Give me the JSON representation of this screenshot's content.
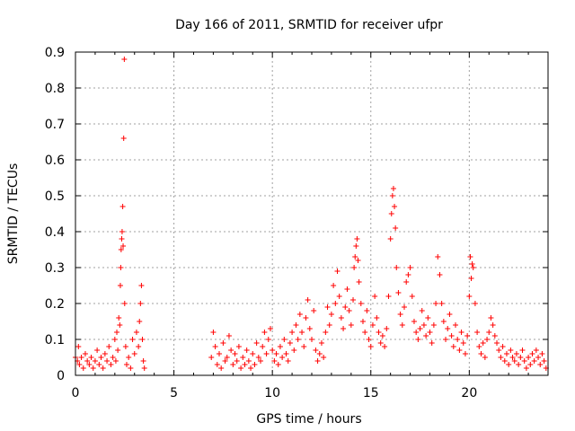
{
  "chart_data": {
    "type": "scatter",
    "title": "Day 166 of 2011, SRMTID for receiver ufpr",
    "xlabel": "GPS time / hours",
    "ylabel": "SRMTID / TECUs",
    "xlim": [
      0,
      24
    ],
    "ylim": [
      0,
      0.9
    ],
    "xticks": [
      "0",
      "5",
      "10",
      "15",
      "20"
    ],
    "xtick_values": [
      0,
      5,
      10,
      15,
      20
    ],
    "yticks": [
      "0",
      "0.1",
      "0.2",
      "0.3",
      "0.4",
      "0.5",
      "0.6",
      "0.7",
      "0.8",
      "0.9"
    ],
    "ytick_values": [
      0,
      0.1,
      0.2,
      0.3,
      0.4,
      0.5,
      0.6,
      0.7,
      0.8,
      0.9
    ],
    "grid": true,
    "marker": "+",
    "series": [
      {
        "name": "SRMTID",
        "color": "#ff0000",
        "points": [
          [
            0.0,
            0.05
          ],
          [
            0.1,
            0.04
          ],
          [
            0.15,
            0.08
          ],
          [
            0.2,
            0.03
          ],
          [
            0.3,
            0.05
          ],
          [
            0.4,
            0.02
          ],
          [
            0.5,
            0.06
          ],
          [
            0.6,
            0.04
          ],
          [
            0.7,
            0.03
          ],
          [
            0.8,
            0.05
          ],
          [
            0.9,
            0.02
          ],
          [
            1.0,
            0.04
          ],
          [
            1.1,
            0.07
          ],
          [
            1.2,
            0.03
          ],
          [
            1.3,
            0.05
          ],
          [
            1.4,
            0.02
          ],
          [
            1.5,
            0.06
          ],
          [
            1.6,
            0.04
          ],
          [
            1.7,
            0.08
          ],
          [
            1.8,
            0.03
          ],
          [
            1.9,
            0.05
          ],
          [
            2.0,
            0.1
          ],
          [
            2.05,
            0.04
          ],
          [
            2.1,
            0.12
          ],
          [
            2.15,
            0.07
          ],
          [
            2.2,
            0.16
          ],
          [
            2.25,
            0.14
          ],
          [
            2.28,
            0.25
          ],
          [
            2.3,
            0.3
          ],
          [
            2.32,
            0.35
          ],
          [
            2.35,
            0.38
          ],
          [
            2.37,
            0.4
          ],
          [
            2.4,
            0.47
          ],
          [
            2.42,
            0.36
          ],
          [
            2.45,
            0.66
          ],
          [
            2.48,
            0.88
          ],
          [
            2.5,
            0.2
          ],
          [
            2.55,
            0.08
          ],
          [
            2.6,
            0.03
          ],
          [
            2.7,
            0.05
          ],
          [
            2.8,
            0.02
          ],
          [
            2.9,
            0.1
          ],
          [
            3.0,
            0.06
          ],
          [
            3.1,
            0.12
          ],
          [
            3.2,
            0.08
          ],
          [
            3.25,
            0.15
          ],
          [
            3.3,
            0.2
          ],
          [
            3.35,
            0.25
          ],
          [
            3.4,
            0.1
          ],
          [
            3.45,
            0.04
          ],
          [
            3.5,
            0.02
          ],
          [
            6.9,
            0.05
          ],
          [
            7.0,
            0.12
          ],
          [
            7.1,
            0.08
          ],
          [
            7.2,
            0.03
          ],
          [
            7.3,
            0.06
          ],
          [
            7.4,
            0.02
          ],
          [
            7.5,
            0.09
          ],
          [
            7.6,
            0.04
          ],
          [
            7.7,
            0.05
          ],
          [
            7.8,
            0.11
          ],
          [
            7.9,
            0.07
          ],
          [
            8.0,
            0.03
          ],
          [
            8.1,
            0.06
          ],
          [
            8.2,
            0.04
          ],
          [
            8.3,
            0.08
          ],
          [
            8.4,
            0.02
          ],
          [
            8.5,
            0.05
          ],
          [
            8.6,
            0.03
          ],
          [
            8.7,
            0.07
          ],
          [
            8.8,
            0.04
          ],
          [
            8.9,
            0.02
          ],
          [
            9.0,
            0.06
          ],
          [
            9.1,
            0.03
          ],
          [
            9.2,
            0.09
          ],
          [
            9.3,
            0.05
          ],
          [
            9.4,
            0.04
          ],
          [
            9.5,
            0.08
          ],
          [
            9.6,
            0.12
          ],
          [
            9.7,
            0.06
          ],
          [
            9.8,
            0.1
          ],
          [
            9.9,
            0.13
          ],
          [
            10.0,
            0.07
          ],
          [
            10.1,
            0.04
          ],
          [
            10.2,
            0.06
          ],
          [
            10.3,
            0.03
          ],
          [
            10.4,
            0.08
          ],
          [
            10.5,
            0.05
          ],
          [
            10.6,
            0.1
          ],
          [
            10.7,
            0.06
          ],
          [
            10.8,
            0.04
          ],
          [
            10.9,
            0.09
          ],
          [
            11.0,
            0.12
          ],
          [
            11.1,
            0.07
          ],
          [
            11.2,
            0.14
          ],
          [
            11.3,
            0.1
          ],
          [
            11.4,
            0.17
          ],
          [
            11.5,
            0.12
          ],
          [
            11.6,
            0.08
          ],
          [
            11.7,
            0.16
          ],
          [
            11.8,
            0.21
          ],
          [
            11.9,
            0.13
          ],
          [
            12.0,
            0.1
          ],
          [
            12.1,
            0.18
          ],
          [
            12.2,
            0.07
          ],
          [
            12.3,
            0.04
          ],
          [
            12.4,
            0.06
          ],
          [
            12.5,
            0.09
          ],
          [
            12.6,
            0.05
          ],
          [
            12.7,
            0.12
          ],
          [
            12.8,
            0.19
          ],
          [
            12.9,
            0.14
          ],
          [
            13.0,
            0.17
          ],
          [
            13.1,
            0.25
          ],
          [
            13.2,
            0.2
          ],
          [
            13.3,
            0.29
          ],
          [
            13.4,
            0.22
          ],
          [
            13.5,
            0.16
          ],
          [
            13.6,
            0.13
          ],
          [
            13.7,
            0.19
          ],
          [
            13.8,
            0.24
          ],
          [
            13.9,
            0.18
          ],
          [
            14.0,
            0.14
          ],
          [
            14.1,
            0.21
          ],
          [
            14.15,
            0.3
          ],
          [
            14.2,
            0.33
          ],
          [
            14.25,
            0.36
          ],
          [
            14.3,
            0.38
          ],
          [
            14.35,
            0.32
          ],
          [
            14.4,
            0.26
          ],
          [
            14.5,
            0.2
          ],
          [
            14.6,
            0.15
          ],
          [
            14.7,
            0.12
          ],
          [
            14.8,
            0.18
          ],
          [
            14.9,
            0.1
          ],
          [
            15.0,
            0.08
          ],
          [
            15.1,
            0.14
          ],
          [
            15.2,
            0.22
          ],
          [
            15.3,
            0.16
          ],
          [
            15.4,
            0.12
          ],
          [
            15.5,
            0.09
          ],
          [
            15.6,
            0.11
          ],
          [
            15.7,
            0.08
          ],
          [
            15.8,
            0.13
          ],
          [
            15.9,
            0.22
          ],
          [
            16.0,
            0.38
          ],
          [
            16.05,
            0.45
          ],
          [
            16.1,
            0.5
          ],
          [
            16.15,
            0.52
          ],
          [
            16.2,
            0.47
          ],
          [
            16.25,
            0.41
          ],
          [
            16.3,
            0.3
          ],
          [
            16.4,
            0.23
          ],
          [
            16.5,
            0.17
          ],
          [
            16.6,
            0.14
          ],
          [
            16.7,
            0.19
          ],
          [
            16.8,
            0.26
          ],
          [
            16.9,
            0.28
          ],
          [
            17.0,
            0.3
          ],
          [
            17.1,
            0.22
          ],
          [
            17.2,
            0.15
          ],
          [
            17.3,
            0.12
          ],
          [
            17.4,
            0.1
          ],
          [
            17.5,
            0.13
          ],
          [
            17.6,
            0.18
          ],
          [
            17.7,
            0.14
          ],
          [
            17.8,
            0.11
          ],
          [
            17.9,
            0.16
          ],
          [
            18.0,
            0.12
          ],
          [
            18.1,
            0.09
          ],
          [
            18.2,
            0.14
          ],
          [
            18.3,
            0.2
          ],
          [
            18.4,
            0.33
          ],
          [
            18.5,
            0.28
          ],
          [
            18.6,
            0.2
          ],
          [
            18.7,
            0.15
          ],
          [
            18.8,
            0.1
          ],
          [
            18.9,
            0.13
          ],
          [
            19.0,
            0.17
          ],
          [
            19.1,
            0.11
          ],
          [
            19.2,
            0.08
          ],
          [
            19.3,
            0.14
          ],
          [
            19.4,
            0.1
          ],
          [
            19.5,
            0.07
          ],
          [
            19.6,
            0.12
          ],
          [
            19.7,
            0.09
          ],
          [
            19.8,
            0.06
          ],
          [
            19.9,
            0.11
          ],
          [
            20.0,
            0.22
          ],
          [
            20.05,
            0.33
          ],
          [
            20.1,
            0.27
          ],
          [
            20.15,
            0.31
          ],
          [
            20.2,
            0.3
          ],
          [
            20.3,
            0.2
          ],
          [
            20.4,
            0.12
          ],
          [
            20.5,
            0.08
          ],
          [
            20.6,
            0.06
          ],
          [
            20.7,
            0.09
          ],
          [
            20.8,
            0.05
          ],
          [
            20.9,
            0.1
          ],
          [
            21.0,
            0.12
          ],
          [
            21.1,
            0.16
          ],
          [
            21.2,
            0.14
          ],
          [
            21.3,
            0.11
          ],
          [
            21.4,
            0.09
          ],
          [
            21.5,
            0.07
          ],
          [
            21.6,
            0.05
          ],
          [
            21.7,
            0.08
          ],
          [
            21.8,
            0.04
          ],
          [
            21.9,
            0.06
          ],
          [
            22.0,
            0.03
          ],
          [
            22.1,
            0.07
          ],
          [
            22.2,
            0.05
          ],
          [
            22.3,
            0.04
          ],
          [
            22.4,
            0.06
          ],
          [
            22.5,
            0.03
          ],
          [
            22.6,
            0.05
          ],
          [
            22.7,
            0.07
          ],
          [
            22.8,
            0.04
          ],
          [
            22.9,
            0.02
          ],
          [
            23.0,
            0.05
          ],
          [
            23.1,
            0.03
          ],
          [
            23.2,
            0.06
          ],
          [
            23.3,
            0.04
          ],
          [
            23.4,
            0.07
          ],
          [
            23.5,
            0.05
          ],
          [
            23.6,
            0.03
          ],
          [
            23.7,
            0.06
          ],
          [
            23.8,
            0.04
          ],
          [
            23.9,
            0.02
          ]
        ]
      }
    ]
  }
}
